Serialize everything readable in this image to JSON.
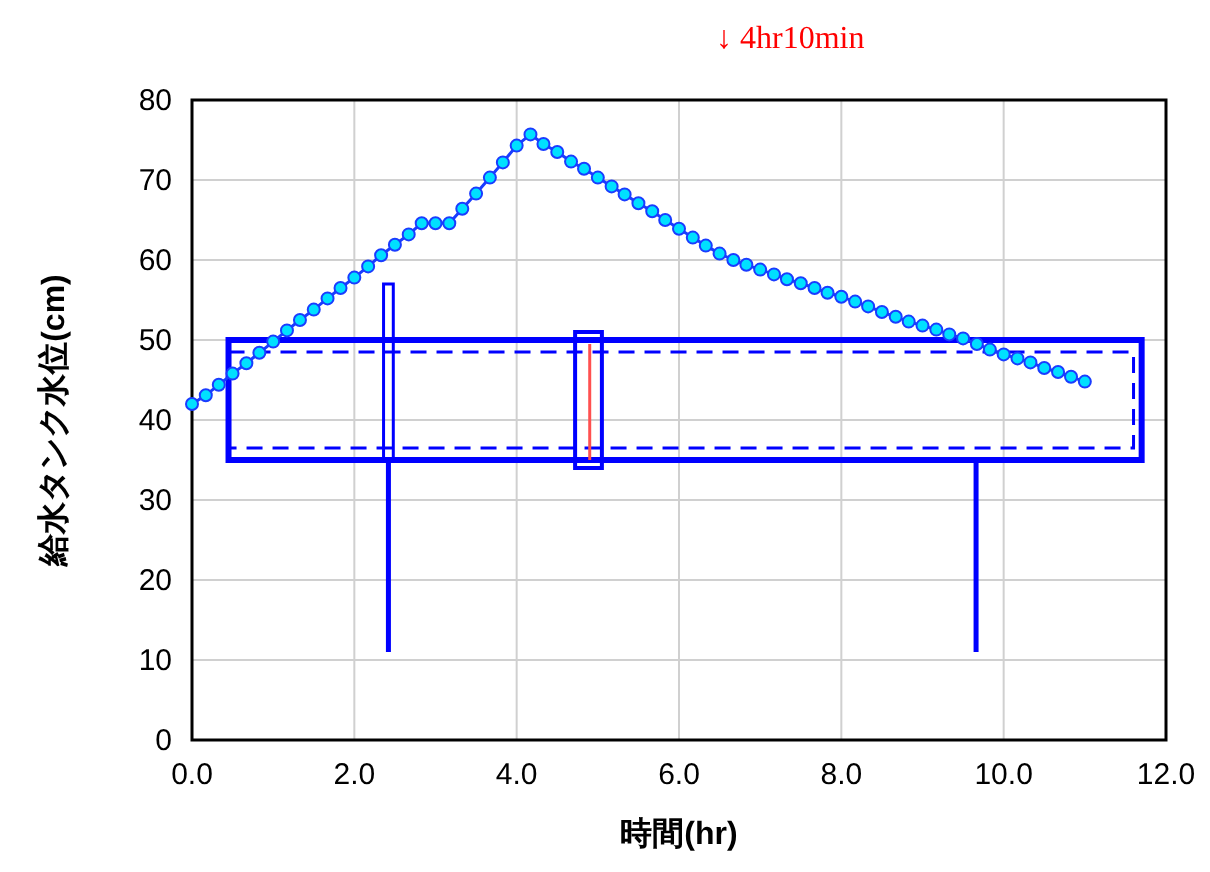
{
  "chart_data": {
    "type": "line",
    "xlabel": "時間(hr)",
    "ylabel": "給水タンク水位(cm)",
    "annotations": [
      "↓ 4hr10min"
    ],
    "xlim": [
      0,
      12
    ],
    "xticks": [
      {
        "value": 0,
        "label": "0.0"
      },
      {
        "value": 2,
        "label": "2.0"
      },
      {
        "value": 4,
        "label": "4.0"
      },
      {
        "value": 6,
        "label": "6.0"
      },
      {
        "value": 8,
        "label": "8.0"
      },
      {
        "value": 10,
        "label": "10.0"
      },
      {
        "value": 12,
        "label": "12.0"
      }
    ],
    "ylim": [
      0,
      80
    ],
    "yticks": [
      0,
      10,
      20,
      30,
      40,
      50,
      60,
      70,
      80
    ],
    "grid": true,
    "marker": "circle",
    "line_style": "solid",
    "x": [
      0,
      0.17,
      0.33,
      0.5,
      0.67,
      0.83,
      1,
      1.17,
      1.33,
      1.5,
      1.67,
      1.83,
      2,
      2.17,
      2.33,
      2.5,
      2.67,
      2.83,
      3,
      3.17,
      3.33,
      3.5,
      3.67,
      3.83,
      4,
      4.17,
      4.33,
      4.5,
      4.67,
      4.83,
      5,
      5.17,
      5.33,
      5.5,
      5.67,
      5.83,
      6,
      6.17,
      6.33,
      6.5,
      6.67,
      6.83,
      7,
      7.17,
      7.33,
      7.5,
      7.67,
      7.83,
      8,
      8.17,
      8.33,
      8.5,
      8.67,
      8.83,
      9,
      9.17,
      9.33,
      9.5,
      9.67,
      9.83,
      10,
      10.17,
      10.33,
      10.5,
      10.67,
      10.83,
      11
    ],
    "series": [
      {
        "color": "#1a3cff",
        "values": [
          42,
          43.1,
          44.4,
          45.8,
          47.1,
          48.4,
          49.8,
          51.2,
          52.5,
          53.8,
          55.2,
          56.5,
          57.8,
          59.2,
          60.6,
          61.9,
          63.2,
          64.6,
          64.6,
          64.6,
          66.4,
          68.3,
          70.3,
          72.2,
          74.3,
          75.7,
          74.5,
          73.5,
          72.3,
          71.4,
          70.3,
          69.2,
          68.2,
          67.1,
          66.1,
          65,
          63.9,
          62.8,
          61.8,
          60.8,
          60,
          59.4,
          58.8,
          58.2,
          57.6,
          57.1,
          56.5,
          55.9,
          55.4,
          54.8,
          54.2,
          53.5,
          52.9,
          52.3,
          51.8,
          51.3,
          50.7,
          50.2,
          49.5,
          48.8,
          48.2,
          47.7,
          47.2,
          46.5,
          46,
          45.4,
          44.8
        ]
      }
    ]
  }
}
